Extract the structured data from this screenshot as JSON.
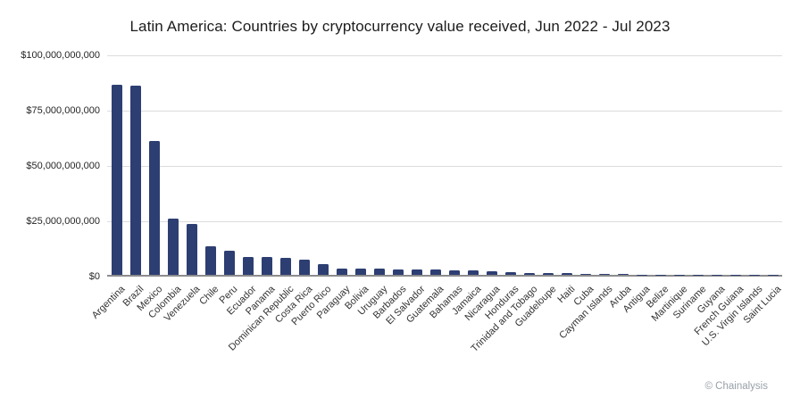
{
  "title": "Latin America: Countries by cryptocurrency value received, Jun 2022 - Jul 2023",
  "footer": {
    "credit": "© Chainalysis"
  },
  "colors": {
    "background": "#ffffff",
    "bar": "#2d3e72",
    "gridline": "#dcdcdc",
    "axis_line": "#8c8c8c",
    "title_text": "#1c1c1c",
    "tick_text": "#262626",
    "category_text": "#333333",
    "credit_text": "#98a0a8"
  },
  "chart_data": {
    "type": "bar",
    "title": "Latin America: Countries by cryptocurrency value received, Jun 2022 - Jul 2023",
    "xlabel": "",
    "ylabel": "",
    "ylim": [
      0,
      100000000000
    ],
    "grid": true,
    "legend": false,
    "bar_color": "#2d3e72",
    "yticks": [
      {
        "value": 100000000000,
        "label": "$100,000,000,000"
      },
      {
        "value": 75000000000,
        "label": "$75,000,000,000"
      },
      {
        "value": 50000000000,
        "label": "$50,000,000,000"
      },
      {
        "value": 25000000000,
        "label": "$25,000,000,000"
      },
      {
        "value": 0,
        "label": "$0"
      }
    ],
    "categories": [
      "Argentina",
      "Brazil",
      "Mexico",
      "Colombia",
      "Venezuela",
      "Chile",
      "Peru",
      "Ecuador",
      "Panama",
      "Dominican Republic",
      "Costa Rica",
      "Puerto Rico",
      "Paraguay",
      "Bolivia",
      "Uruguay",
      "Barbados",
      "El Salvador",
      "Guatemala",
      "Bahamas",
      "Jamaica",
      "Nicaragua",
      "Honduras",
      "Trinidad and Tobago",
      "Guadeloupe",
      "Haiti",
      "Cuba",
      "Cayman Islands",
      "Aruba",
      "Antigua",
      "Belize",
      "Martinique",
      "Suriname",
      "Guyana",
      "French Guiana",
      "U.S. Virgin Islands",
      "Saint Lucia"
    ],
    "values": [
      85800000000,
      85400000000,
      60500000000,
      25300000000,
      22900000000,
      12800000000,
      10800000000,
      8100000000,
      7900000000,
      7500000000,
      7000000000,
      4700000000,
      3000000000,
      2900000000,
      2800000000,
      2500000000,
      2400000000,
      2300000000,
      2000000000,
      1900000000,
      1800000000,
      1200000000,
      850000000,
      800000000,
      700000000,
      400000000,
      300000000,
      250000000,
      150000000,
      120000000,
      100000000,
      80000000,
      60000000,
      50000000,
      40000000,
      30000000
    ]
  }
}
